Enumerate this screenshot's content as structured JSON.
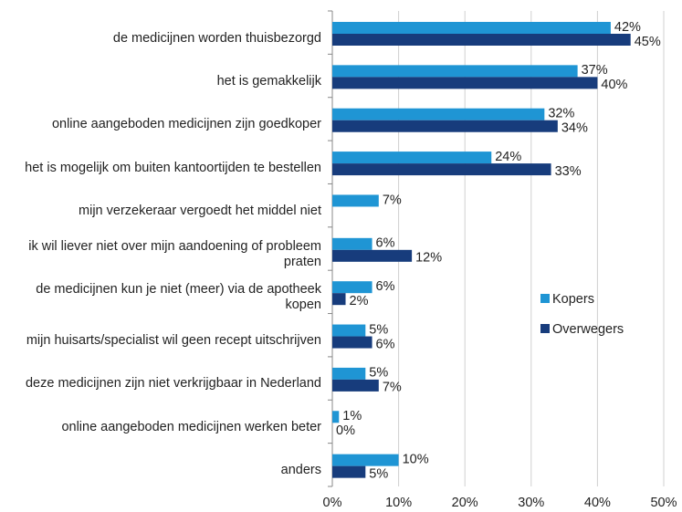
{
  "chart_data": {
    "type": "hbar",
    "categories": [
      "de medicijnen worden thuisbezorgd",
      "het is gemakkelijk",
      "online aangeboden medicijnen zijn goedkoper",
      "het is mogelijk om buiten kantoortijden te bestellen",
      "mijn verzekeraar vergoedt het middel niet",
      "ik wil liever niet over mijn aandoening of probleem praten",
      "de medicijnen kun je niet (meer) via de apotheek kopen",
      "mijn huisarts/specialist wil geen recept uitschrijven",
      "deze medicijnen zijn niet verkrijgbaar in Nederland",
      "online aangeboden medicijnen werken beter",
      "anders"
    ],
    "series": [
      {
        "name": "Kopers",
        "color": "#1f95d4",
        "values": [
          42,
          37,
          32,
          24,
          7,
          6,
          6,
          5,
          5,
          1,
          10
        ],
        "value_labels": [
          "42%",
          "37%",
          "32%",
          "24%",
          "7%",
          "6%",
          "6%",
          "5%",
          "5%",
          "1%",
          "10%"
        ]
      },
      {
        "name": "Overwegers",
        "color": "#173c7c",
        "values": [
          45,
          40,
          34,
          33,
          null,
          12,
          2,
          6,
          7,
          0,
          5
        ],
        "value_labels": [
          "45%",
          "40%",
          "34%",
          "33%",
          null,
          "12%",
          "2%",
          "6%",
          "7%",
          "0%",
          "5%"
        ]
      }
    ],
    "xlim": [
      0,
      50
    ],
    "xticks": [
      {
        "value": 0,
        "label": "0%"
      },
      {
        "value": 10,
        "label": "10%"
      },
      {
        "value": 20,
        "label": "20%"
      },
      {
        "value": 30,
        "label": "30%"
      },
      {
        "value": 40,
        "label": "40%"
      },
      {
        "value": 50,
        "label": "50%"
      }
    ],
    "grid": true,
    "legend": "right"
  }
}
